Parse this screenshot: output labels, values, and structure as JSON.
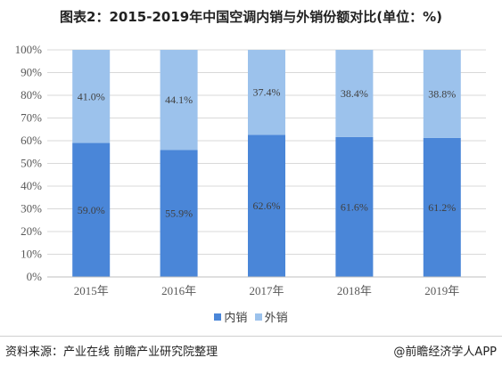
{
  "title": "图表2：2015-2019年中国空调内销与外销份额对比(单位：%)",
  "legend": {
    "domestic": "内销",
    "export": "外销"
  },
  "footer": {
    "source": "资料来源：产业在线 前瞻产业研究院整理",
    "brand": "@前瞻经济学人APP"
  },
  "colors": {
    "domestic": "#4a86d8",
    "export": "#9cc2ec",
    "grid": "#d9d9d9"
  },
  "chart_data": {
    "type": "bar",
    "stacked": true,
    "categories": [
      "2015年",
      "2016年",
      "2017年",
      "2018年",
      "2019年"
    ],
    "series": [
      {
        "name": "内销",
        "values": [
          59.0,
          55.9,
          62.6,
          61.6,
          61.2
        ],
        "labels": [
          "59.0%",
          "55.9%",
          "62.6%",
          "61.6%",
          "61.2%"
        ]
      },
      {
        "name": "外销",
        "values": [
          41.0,
          44.1,
          37.4,
          38.4,
          38.8
        ],
        "labels": [
          "41.0%",
          "44.1%",
          "37.4%",
          "38.4%",
          "38.8%"
        ]
      }
    ],
    "ylim": [
      0,
      100
    ],
    "yticks": [
      "0%",
      "10%",
      "20%",
      "30%",
      "40%",
      "50%",
      "60%",
      "70%",
      "80%",
      "90%",
      "100%"
    ],
    "grid": true,
    "legend_position": "bottom"
  }
}
